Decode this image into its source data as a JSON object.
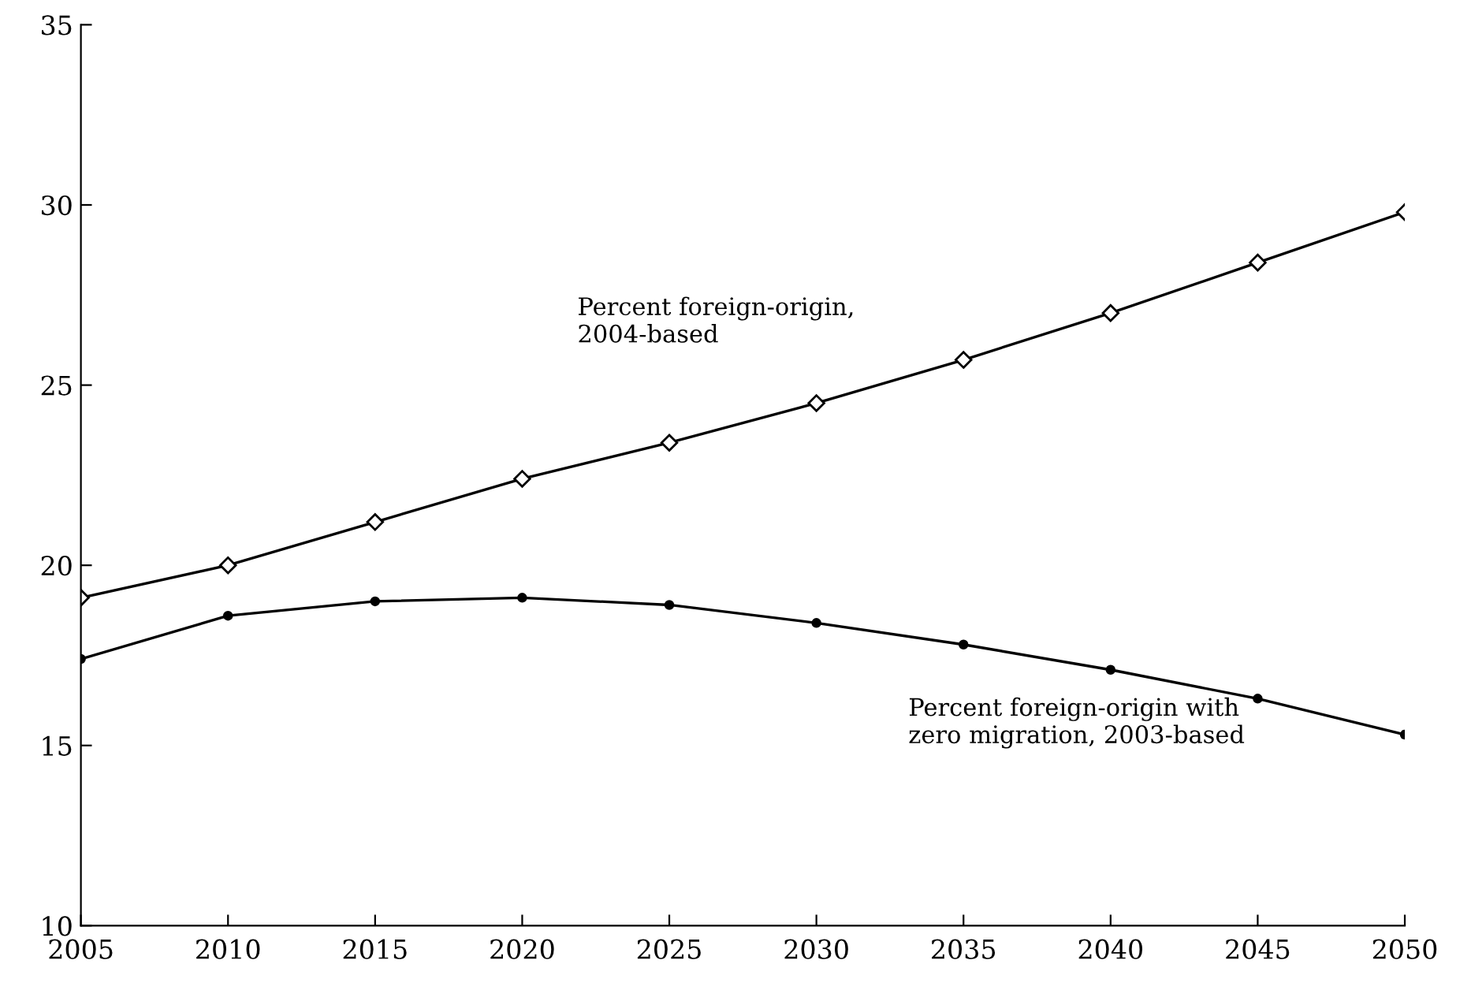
{
  "chart_data": {
    "type": "line",
    "x": [
      2005,
      2010,
      2015,
      2020,
      2025,
      2030,
      2035,
      2040,
      2045,
      2050
    ],
    "series": [
      {
        "color": "#000000",
        "marker": "diamond",
        "values": [
          19.1,
          20.0,
          21.2,
          22.4,
          23.4,
          24.5,
          25.7,
          27.0,
          28.4,
          29.8
        ]
      },
      {
        "color": "#000000",
        "marker": "circle",
        "values": [
          17.4,
          18.6,
          19.0,
          19.1,
          18.9,
          18.4,
          17.8,
          17.1,
          16.3,
          15.3
        ]
      }
    ],
    "annotations": [
      "Percent foreign-origin,\n2004-based",
      "Percent foreign-origin with\nzero migration, 2003-based"
    ],
    "xlim": [
      2005,
      2050
    ],
    "xticks": [
      2005,
      2010,
      2015,
      2020,
      2025,
      2030,
      2035,
      2040,
      2045,
      2050
    ],
    "ylim": [
      10,
      35
    ],
    "yticks": [
      10,
      15,
      20,
      25,
      30,
      35
    ],
    "grid": false,
    "legend": false,
    "line_style": "solid"
  }
}
